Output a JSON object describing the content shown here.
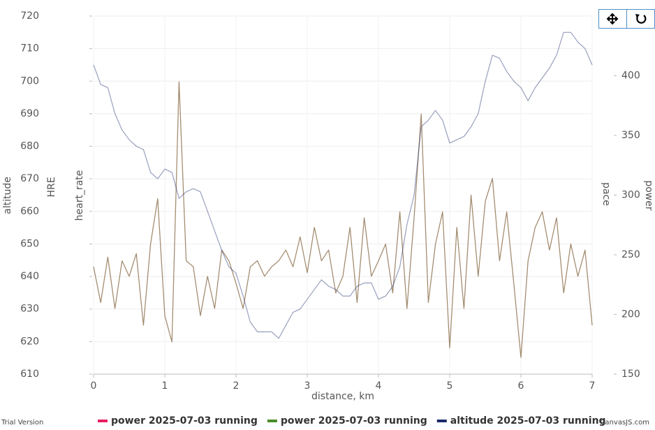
{
  "chart_data": {
    "type": "line",
    "xlabel": "distance, km",
    "ylabel": "altitude",
    "ylabel_extra": [
      "HRE",
      "heart_rate"
    ],
    "y2label": "power",
    "y2label_extra": [
      "pace"
    ],
    "watermark_left": "Trial Version",
    "watermark_right": "CanvasJS.com",
    "grid": true,
    "xlim": [
      0,
      7
    ],
    "xticks": [
      0,
      1,
      2,
      3,
      4,
      5,
      6,
      7
    ],
    "ylim": [
      610,
      720
    ],
    "yticks": [
      610,
      620,
      630,
      640,
      650,
      660,
      670,
      680,
      690,
      700,
      710,
      720
    ],
    "y2lim": [
      150,
      450
    ],
    "y2ticks": [
      150,
      200,
      250,
      300,
      350,
      400
    ],
    "x": [
      0,
      0.1,
      0.2,
      0.3,
      0.4,
      0.5,
      0.6,
      0.7,
      0.8,
      0.9,
      1,
      1.1,
      1.2,
      1.3,
      1.4,
      1.5,
      1.6,
      1.7,
      1.8,
      1.9,
      2,
      2.1,
      2.2,
      2.3,
      2.4,
      2.5,
      2.6,
      2.7,
      2.8,
      2.9,
      3,
      3.1,
      3.2,
      3.3,
      3.4,
      3.5,
      3.6,
      3.7,
      3.8,
      3.9,
      4,
      4.1,
      4.2,
      4.3,
      4.4,
      4.5,
      4.6,
      4.7,
      4.8,
      4.9,
      5,
      5.1,
      5.2,
      5.3,
      5.4,
      5.5,
      5.6,
      5.7,
      5.8,
      5.9,
      6,
      6.1,
      6.2,
      6.3,
      6.4,
      6.5,
      6.6,
      6.7,
      6.8,
      6.9,
      7
    ],
    "series": [
      {
        "name": "power 2025-07-03 running",
        "color": "#e91e63",
        "axis": "y2",
        "values": [
          240,
          210,
          248,
          205,
          245,
          232,
          251,
          191,
          259,
          297,
          199,
          177,
          395,
          245,
          240,
          199,
          232,
          205,
          254,
          245,
          226,
          205,
          240,
          245,
          232,
          240,
          245,
          254,
          240,
          265,
          235,
          273,
          245,
          254,
          218,
          232,
          273,
          210,
          281,
          232,
          245,
          259,
          218,
          286,
          205,
          281,
          368,
          210,
          259,
          286,
          172,
          273,
          205,
          300,
          232,
          295,
          314,
          245,
          286,
          226,
          164,
          245,
          273,
          286,
          254,
          281,
          218,
          259,
          232,
          254,
          191
        ]
      },
      {
        "name": "power 2025-07-03 running",
        "color": "#4a8c2a",
        "axis": "y2",
        "values": [
          240,
          210,
          248,
          205,
          245,
          232,
          251,
          191,
          259,
          297,
          199,
          177,
          395,
          245,
          240,
          199,
          232,
          205,
          254,
          245,
          226,
          205,
          240,
          245,
          232,
          240,
          245,
          254,
          240,
          265,
          235,
          273,
          245,
          254,
          218,
          232,
          273,
          210,
          281,
          232,
          245,
          259,
          218,
          286,
          205,
          281,
          368,
          210,
          259,
          286,
          172,
          273,
          205,
          300,
          232,
          295,
          314,
          245,
          286,
          226,
          164,
          245,
          273,
          286,
          254,
          281,
          218,
          259,
          232,
          254,
          191
        ]
      },
      {
        "name": "altitude 2025-07-03 running",
        "color": "#1a2a6c",
        "values": [
          705,
          699,
          698,
          690,
          685,
          682,
          680,
          679,
          672,
          670,
          673,
          672,
          664,
          666,
          667,
          666,
          660,
          654,
          648,
          643,
          641,
          634,
          626,
          623,
          623,
          623,
          621,
          625,
          629,
          630,
          633,
          636,
          639,
          637,
          636,
          634,
          634,
          637,
          638,
          638,
          633,
          634,
          637,
          643,
          656,
          665,
          686,
          688,
          691,
          688,
          681,
          682,
          683,
          686,
          690,
          700,
          708,
          707,
          703,
          700,
          698,
          694,
          698,
          701,
          704,
          708,
          715,
          715,
          712,
          710,
          705
        ]
      }
    ]
  }
}
